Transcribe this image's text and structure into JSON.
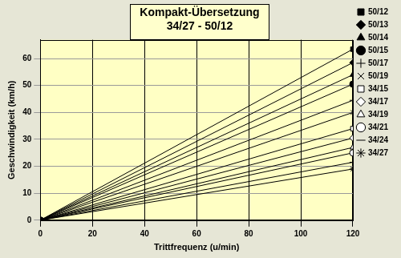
{
  "chart_data": {
    "type": "line",
    "title": "Kompakt-Übersetzung\n34/27 - 50/12",
    "x_label": "Trittfrequenz (u/min)",
    "y_label": "Geschwindigkeit (km/h)",
    "x": [
      0,
      120
    ],
    "series": [
      {
        "name": "50/12",
        "color": "#000000",
        "marker": "square",
        "values": [
          0,
          63.5
        ]
      },
      {
        "name": "50/13",
        "color": "#000000",
        "marker": "diamond",
        "values": [
          0,
          58.5
        ]
      },
      {
        "name": "50/14",
        "color": "#000000",
        "marker": "triangle",
        "values": [
          0,
          54
        ]
      },
      {
        "name": "50/15",
        "color": "#000000",
        "marker": "circle",
        "values": [
          0,
          50.5
        ]
      },
      {
        "name": "50/17",
        "color": "#000000",
        "marker": "plus",
        "values": [
          0,
          44.5
        ]
      },
      {
        "name": "50/19",
        "color": "#000000",
        "marker": "x",
        "values": [
          0,
          40
        ]
      },
      {
        "name": "34/15",
        "color": "#000000",
        "marker": "square_open",
        "values": [
          0,
          34
        ]
      },
      {
        "name": "34/17",
        "color": "#000000",
        "marker": "diamond_open",
        "values": [
          0,
          30.5
        ]
      },
      {
        "name": "34/19",
        "color": "#000000",
        "marker": "triangle_open",
        "values": [
          0,
          27
        ]
      },
      {
        "name": "34/21",
        "color": "#000000",
        "marker": "circle_open",
        "values": [
          0,
          25
        ]
      },
      {
        "name": "34/24",
        "color": "#000000",
        "marker": "dash",
        "values": [
          0,
          21.5
        ]
      },
      {
        "name": "34/27",
        "color": "#000000",
        "marker": "star",
        "values": [
          0,
          19
        ]
      }
    ],
    "xlim": [
      0,
      120
    ],
    "xticks": [
      0,
      20,
      40,
      60,
      80,
      100,
      120
    ],
    "ylim": [
      0,
      67
    ],
    "yticks": [
      0,
      10,
      20,
      30,
      40,
      50,
      60
    ],
    "grid": true,
    "legend": "right"
  }
}
